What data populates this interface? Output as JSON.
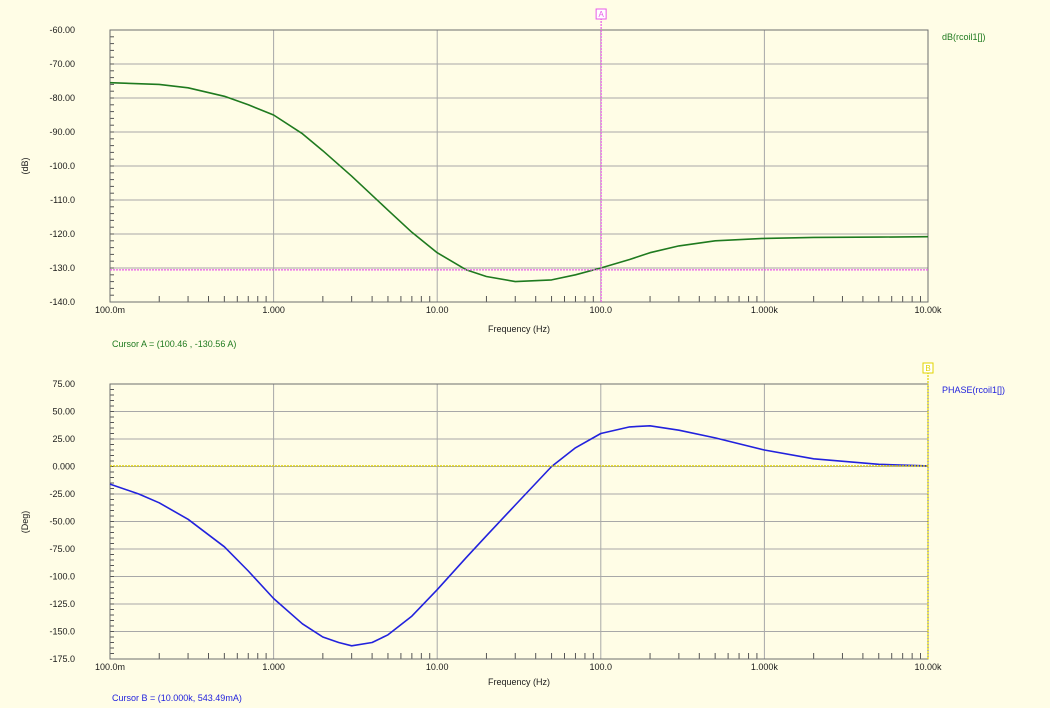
{
  "colors": {
    "background": "#fffde6",
    "magnitude_trace": "#1f7a1f",
    "phase_trace": "#2222dd",
    "cursor_a": "#e85ae8",
    "cursor_b": "#e0d400",
    "grid": "#a8a8a8"
  },
  "cursor_a": {
    "marker": "A",
    "readout": "Cursor A = (100.46 , -130.56 A)"
  },
  "cursor_b": {
    "marker": "B",
    "readout": "Cursor B = (10.000k, 543.49mA)"
  },
  "chart_data": [
    {
      "type": "line",
      "title": "",
      "xlabel": "Frequency (Hz)",
      "ylabel": "(dB)",
      "x_scale": "log",
      "xlim": [
        0.1,
        10000
      ],
      "ylim": [
        -140,
        -60
      ],
      "grid": true,
      "legend_position": "top-right",
      "x_ticks": [
        0.1,
        1,
        10,
        100,
        1000,
        10000
      ],
      "x_tick_labels": [
        "100.0m",
        "1.000",
        "10.00",
        "100.0",
        "1.000k",
        "10.00k"
      ],
      "y_ticks": [
        -60,
        -70,
        -80,
        -90,
        -100,
        -110,
        -120,
        -130,
        -140
      ],
      "y_tick_labels": [
        "-60.00",
        "-70.00",
        "-80.00",
        "-90.00",
        "-100.0",
        "-110.0",
        "-120.0",
        "-130.0",
        "-140.0"
      ],
      "series": [
        {
          "name": "dB(rcoil1[])",
          "color": "#1f7a1f",
          "x": [
            0.1,
            0.2,
            0.3,
            0.5,
            0.7,
            1.0,
            1.5,
            2.0,
            3.0,
            5.0,
            7.0,
            10,
            15,
            20,
            30,
            50,
            70,
            100,
            150,
            200,
            300,
            500,
            1000,
            2000,
            5000,
            10000
          ],
          "y": [
            -75.5,
            -76.0,
            -77.0,
            -79.5,
            -82.0,
            -85.0,
            -90.5,
            -95.5,
            -103.0,
            -113.0,
            -119.5,
            -125.5,
            -130.5,
            -132.5,
            -134.0,
            -133.5,
            -132.0,
            -130.0,
            -127.5,
            -125.5,
            -123.5,
            -122.0,
            -121.3,
            -121.0,
            -120.9,
            -120.8
          ]
        }
      ],
      "cursor": {
        "name": "A",
        "x": 100.46,
        "y": -130.56,
        "color": "#e85ae8"
      }
    },
    {
      "type": "line",
      "title": "",
      "xlabel": "Frequency (Hz)",
      "ylabel": "(Deg)",
      "x_scale": "log",
      "xlim": [
        0.1,
        10000
      ],
      "ylim": [
        -175,
        75
      ],
      "grid": true,
      "legend_position": "top-right",
      "x_ticks": [
        0.1,
        1,
        10,
        100,
        1000,
        10000
      ],
      "x_tick_labels": [
        "100.0m",
        "1.000",
        "10.00",
        "100.0",
        "1.000k",
        "10.00k"
      ],
      "y_ticks": [
        75,
        50,
        25,
        0,
        -25,
        -50,
        -75,
        -100,
        -125,
        -150,
        -175
      ],
      "y_tick_labels": [
        "75.00",
        "50.00",
        "25.00",
        "0.000",
        "-25.00",
        "-50.00",
        "-75.00",
        "-100.0",
        "-125.0",
        "-150.0",
        "-175.0"
      ],
      "series": [
        {
          "name": "PHASE(rcoil1[])",
          "color": "#2222dd",
          "x": [
            0.1,
            0.15,
            0.2,
            0.3,
            0.5,
            0.7,
            1.0,
            1.5,
            2.0,
            2.5,
            3.0,
            4.0,
            5.0,
            7.0,
            10,
            15,
            20,
            30,
            50,
            70,
            100,
            150,
            200,
            300,
            500,
            1000,
            2000,
            5000,
            10000
          ],
          "y": [
            -16,
            -25,
            -33,
            -48,
            -73,
            -95,
            -120,
            -143,
            -155,
            -160,
            -163,
            -160,
            -153,
            -136,
            -112,
            -83,
            -63,
            -35,
            0,
            17,
            30,
            36,
            37,
            33,
            26,
            15,
            7,
            2,
            0.5
          ]
        }
      ],
      "cursor": {
        "name": "B",
        "x": 10000,
        "y": 0.54349,
        "color": "#e0d400"
      }
    }
  ]
}
